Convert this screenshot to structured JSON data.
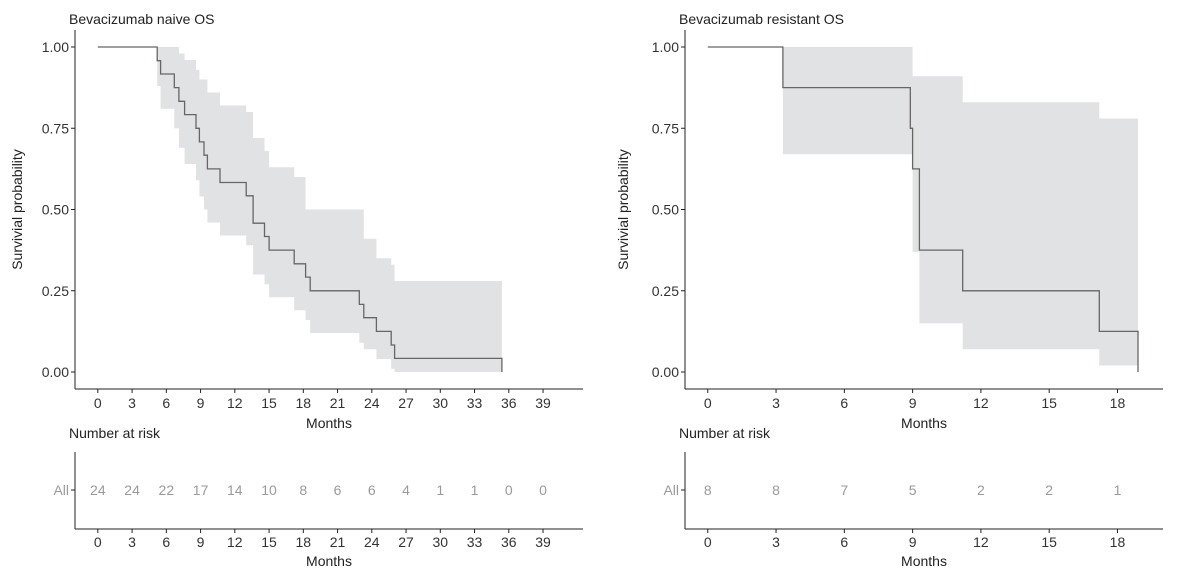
{
  "chart_data": [
    {
      "type": "line",
      "subtype": "kaplan-meier",
      "title": "Bevacizumab naive OS",
      "xlabel": "Months",
      "ylabel": "Survivial probability",
      "xlim": [
        -2,
        42.5
      ],
      "ylim": [
        0,
        1
      ],
      "xticks": [
        0,
        3,
        6,
        9,
        12,
        15,
        18,
        21,
        24,
        27,
        30,
        33,
        36,
        39
      ],
      "yticks": [
        "0.00",
        "0.25",
        "0.50",
        "0.75",
        "1.00"
      ],
      "survival_steps": [
        [
          0,
          1.0
        ],
        [
          5.2,
          0.958
        ],
        [
          5.5,
          0.917
        ],
        [
          6.7,
          0.875
        ],
        [
          7.1,
          0.833
        ],
        [
          7.6,
          0.792
        ],
        [
          8.6,
          0.75
        ],
        [
          8.9,
          0.708
        ],
        [
          9.3,
          0.667
        ],
        [
          9.6,
          0.625
        ],
        [
          10.7,
          0.583
        ],
        [
          13.0,
          0.542
        ],
        [
          13.6,
          0.458
        ],
        [
          14.6,
          0.417
        ],
        [
          15.0,
          0.375
        ],
        [
          17.2,
          0.333
        ],
        [
          18.2,
          0.292
        ],
        [
          18.6,
          0.25
        ],
        [
          22.9,
          0.208
        ],
        [
          23.3,
          0.167
        ],
        [
          24.4,
          0.125
        ],
        [
          25.7,
          0.083
        ],
        [
          26.0,
          0.042
        ],
        [
          35.4,
          0.0
        ]
      ],
      "ci_upper": [
        [
          0,
          1.0
        ],
        [
          6.7,
          1.0
        ],
        [
          7.1,
          0.98
        ],
        [
          7.6,
          0.96
        ],
        [
          8.6,
          0.93
        ],
        [
          8.9,
          0.9
        ],
        [
          9.6,
          0.86
        ],
        [
          10.7,
          0.82
        ],
        [
          13.0,
          0.8
        ],
        [
          13.6,
          0.72
        ],
        [
          14.6,
          0.68
        ],
        [
          15.0,
          0.63
        ],
        [
          17.2,
          0.6
        ],
        [
          18.2,
          0.5
        ],
        [
          22.9,
          0.5
        ],
        [
          23.3,
          0.41
        ],
        [
          24.4,
          0.35
        ],
        [
          25.7,
          0.33
        ],
        [
          26.0,
          0.28
        ],
        [
          35.4,
          0.28
        ]
      ],
      "ci_lower": [
        [
          0,
          1.0
        ],
        [
          5.2,
          0.88
        ],
        [
          5.5,
          0.81
        ],
        [
          6.7,
          0.75
        ],
        [
          7.1,
          0.69
        ],
        [
          7.6,
          0.64
        ],
        [
          8.6,
          0.59
        ],
        [
          8.9,
          0.54
        ],
        [
          9.3,
          0.5
        ],
        [
          9.6,
          0.46
        ],
        [
          10.7,
          0.42
        ],
        [
          13.0,
          0.39
        ],
        [
          13.6,
          0.3
        ],
        [
          14.6,
          0.27
        ],
        [
          15.0,
          0.23
        ],
        [
          17.2,
          0.19
        ],
        [
          18.2,
          0.16
        ],
        [
          18.6,
          0.12
        ],
        [
          22.9,
          0.09
        ],
        [
          23.3,
          0.07
        ],
        [
          24.4,
          0.04
        ],
        [
          25.7,
          0.01
        ],
        [
          26.0,
          0.0
        ]
      ],
      "risk_table": {
        "title": "Number at risk",
        "strata_label": "All",
        "xlabel": "Months",
        "times": [
          0,
          3,
          6,
          9,
          12,
          15,
          18,
          21,
          24,
          27,
          30,
          33,
          36,
          39
        ],
        "counts": [
          "24",
          "24",
          "22",
          "17",
          "14",
          "10",
          "8",
          "6",
          "6",
          "4",
          "1",
          "1",
          "0",
          "0"
        ]
      }
    },
    {
      "type": "line",
      "subtype": "kaplan-meier",
      "title": "Bevacizumab resistant OS",
      "xlabel": "Months",
      "ylabel": "Survivial probability",
      "xlim": [
        -1,
        20
      ],
      "ylim": [
        0,
        1
      ],
      "xticks": [
        0,
        3,
        6,
        9,
        12,
        15,
        18
      ],
      "yticks": [
        "0.00",
        "0.25",
        "0.50",
        "0.75",
        "1.00"
      ],
      "survival_steps": [
        [
          0,
          1.0
        ],
        [
          3.3,
          0.875
        ],
        [
          8.9,
          0.75
        ],
        [
          9.0,
          0.625
        ],
        [
          9.3,
          0.375
        ],
        [
          11.2,
          0.25
        ],
        [
          17.2,
          0.125
        ],
        [
          18.9,
          0.0
        ]
      ],
      "ci_upper": [
        [
          0,
          1.0
        ],
        [
          3.3,
          1.0
        ],
        [
          9.0,
          0.91
        ],
        [
          11.2,
          0.83
        ],
        [
          17.2,
          0.78
        ],
        [
          18.9,
          0.78
        ]
      ],
      "ci_lower": [
        [
          0,
          1.0
        ],
        [
          3.3,
          0.67
        ],
        [
          9.0,
          0.37
        ],
        [
          9.3,
          0.15
        ],
        [
          11.2,
          0.07
        ],
        [
          17.2,
          0.02
        ],
        [
          18.9,
          0.02
        ]
      ],
      "risk_table": {
        "title": "Number at risk",
        "strata_label": "All",
        "xlabel": "Months",
        "times": [
          0,
          3,
          6,
          9,
          12,
          15,
          18
        ],
        "counts": [
          "8",
          "8",
          "7",
          "5",
          "2",
          "2",
          "1"
        ]
      }
    }
  ]
}
